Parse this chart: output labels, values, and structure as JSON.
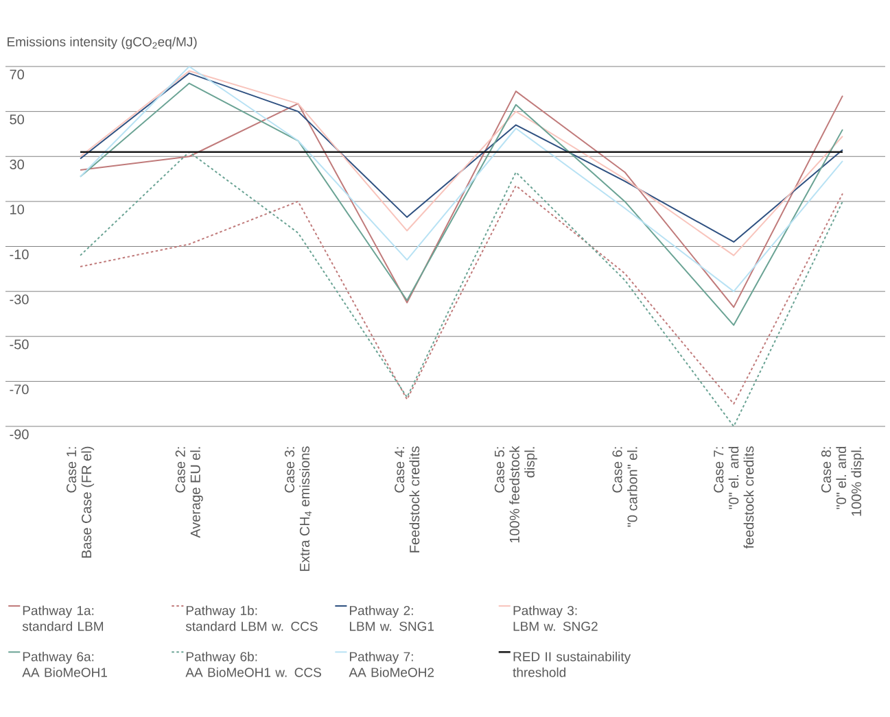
{
  "chart_data": {
    "type": "line",
    "ylabel": "Emissions intensity (gCO$_{2}$eq/MJ)",
    "categories": [
      "Case 1:\nBase Case (FR el)",
      "Case 2:\nAverage EU el.",
      "Case 3:\nExtra CH$_{4}$ emissions",
      "Case 4:\nFeedstock credits",
      "Case 5:\n100% feedstock\ndispl.",
      "Case 6:\n\"0 carbon\" el.",
      "Case 7:\n\"0\" el. and\nfeedstock credits",
      "Case 8:\n\"0\" el. and\n100% displ."
    ],
    "series": [
      {
        "name": "Pathway 1a:\nstandard LBM",
        "color": "#c07a7a",
        "line_style": "solid",
        "values": [
          24,
          30,
          53.5,
          -35,
          59,
          23,
          -37,
          57
        ]
      },
      {
        "name": "Pathway 1b:\nstandard LBM w. CCS",
        "color": "#c07a7a",
        "line_style": "dotted",
        "values": [
          -19,
          -9,
          10,
          -78,
          17,
          -22,
          -80,
          13.5
        ]
      },
      {
        "name": "Pathway 2:\nLBM w. SNG1",
        "color": "#2e5080",
        "line_style": "solid",
        "values": [
          29,
          67,
          50,
          3,
          44,
          19,
          -8,
          33
        ]
      },
      {
        "name": "Pathway 3:\nLBM w. SNG2",
        "color": "#f8c4bc",
        "line_style": "solid",
        "values": [
          30,
          68,
          53.5,
          -3,
          50,
          20,
          -14,
          39
        ]
      },
      {
        "name": "Pathway 6a:\nAA BioMeOH1",
        "color": "#6aa394",
        "line_style": "solid",
        "values": [
          21,
          62.5,
          37,
          -34,
          53,
          10,
          -45,
          42
        ]
      },
      {
        "name": "Pathway 6b:\nAA BioMeOH1 w. CCS",
        "color": "#6aa394",
        "line_style": "dotted",
        "values": [
          -14,
          32,
          -4,
          -77,
          23,
          -25,
          -90,
          10
        ]
      },
      {
        "name": "Pathway 7:\nAA BioMeOH2",
        "color": "#b8e2f4",
        "line_style": "solid",
        "values": [
          21,
          70,
          37,
          -16,
          42.5,
          7,
          -30,
          28
        ]
      }
    ],
    "ref_lines": [
      {
        "axis": "y",
        "value": 32,
        "label": "RED II sustainability\nthreshold",
        "color": "#1a1a1a"
      }
    ],
    "ylim": [
      -90,
      70
    ],
    "yticks": [
      -90,
      -70,
      -50,
      -30,
      -10,
      10,
      30,
      50,
      70
    ],
    "grid": "y",
    "legend": "bottom"
  }
}
